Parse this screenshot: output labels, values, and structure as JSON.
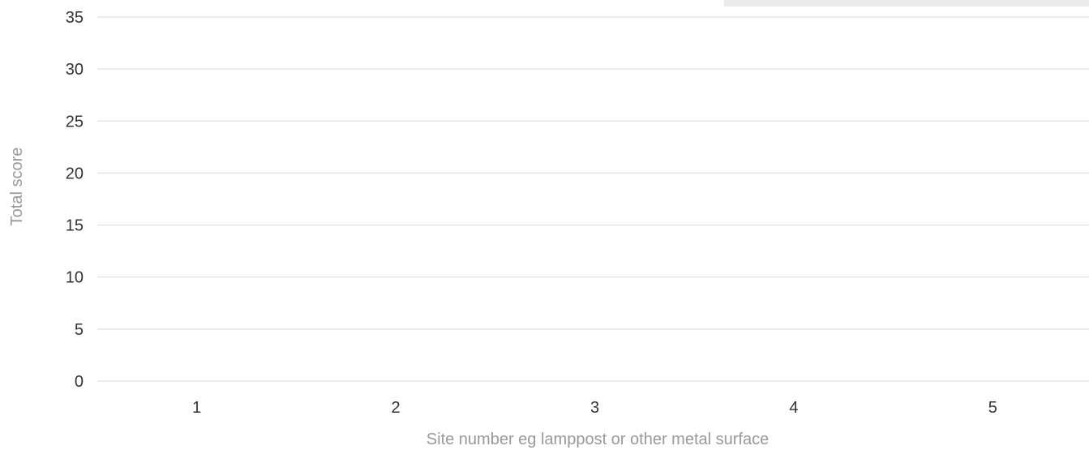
{
  "chart_data": {
    "type": "bar",
    "categories": [
      "1",
      "2",
      "3",
      "4",
      "5"
    ],
    "series": [
      {
        "values": [
          0,
          0,
          0,
          0,
          0
        ]
      }
    ],
    "xlabel": "Site number eg lamppost or other metal surface",
    "ylabel": "Total score",
    "ylim": [
      0,
      35
    ],
    "yticks": [
      0,
      5,
      10,
      15,
      20,
      25,
      30,
      35
    ],
    "grid": true,
    "legend": "top-right",
    "colors": {
      "grid": "#d9d9d9",
      "tick_text": "#333333",
      "axis_title": "#999999",
      "legend_background": "#ebebeb",
      "bar": "#4a90d9"
    }
  }
}
